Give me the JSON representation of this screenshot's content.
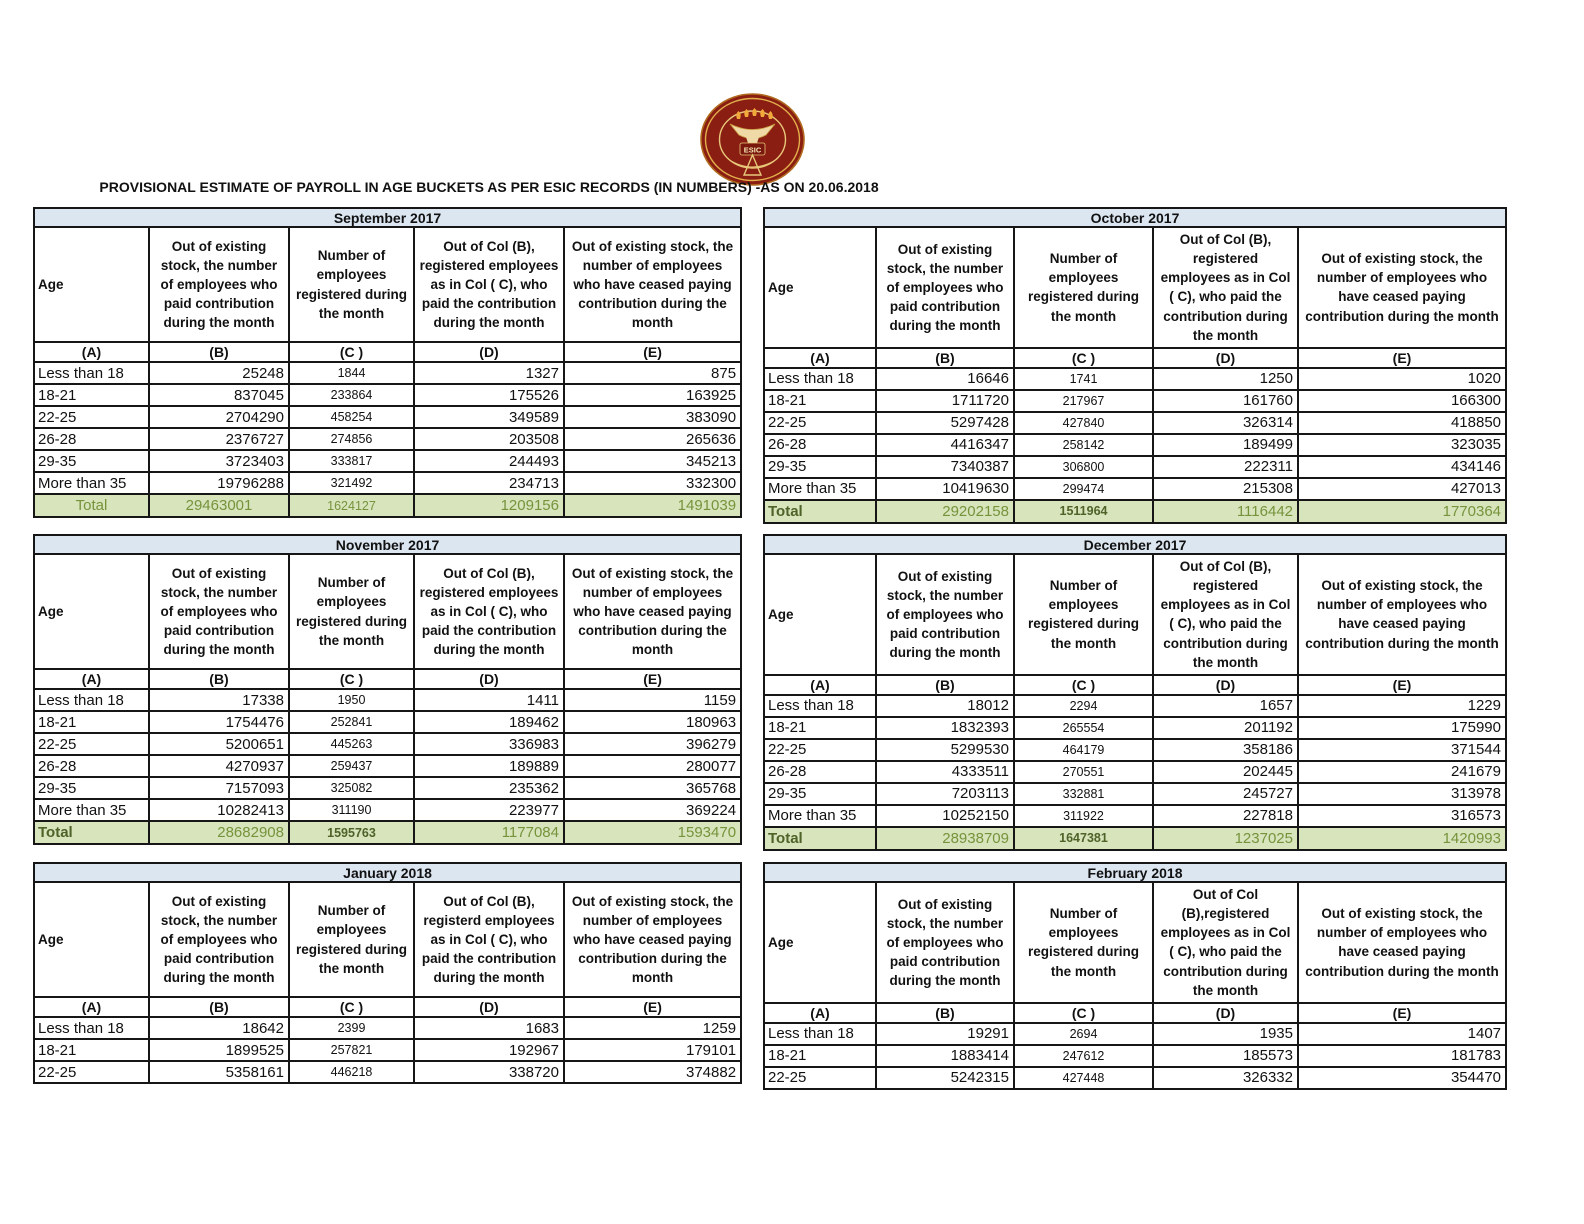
{
  "page": {
    "title": "PROVISIONAL ESTIMATE OF PAYROLL IN AGE BUCKETS AS PER ESIC RECORDS (IN NUMBERS) -AS ON 20.06.2018"
  },
  "logo": {
    "label": "ESIC"
  },
  "colors": {
    "month_header_fill": "#DCE6F1",
    "total_row_fill": "#D7E4BC",
    "total_text": "#76933C",
    "total_text_bold": "#4F6228",
    "grid_line": "#161616",
    "logo_maroon": "#8A1E12",
    "logo_gold": "#E3B04B"
  },
  "tables": [
    {
      "month": "September 2017",
      "columns": [
        "Age",
        "Out of existing stock, the number of employees who paid contribution during the month",
        "Number of employees registered during the month",
        "Out of Col (B), registered employees as in Col ( C), who paid the contribution during the month",
        "Out of existing stock, the number of employees who have ceased paying contribution during the month"
      ],
      "letters": [
        "(A)",
        "(B)",
        "(C )",
        "(D)",
        "(E)"
      ],
      "rows": [
        [
          "Less than 18",
          "25248",
          "1844",
          "1327",
          "875"
        ],
        [
          "18-21",
          "837045",
          "233864",
          "175526",
          "163925"
        ],
        [
          "22-25",
          "2704290",
          "458254",
          "349589",
          "383090"
        ],
        [
          "26-28",
          "2376727",
          "274856",
          "203508",
          "265636"
        ],
        [
          "29-35",
          "3723403",
          "333817",
          "244493",
          "345213"
        ],
        [
          "More than 35",
          "19796288",
          "321492",
          "234713",
          "332300"
        ]
      ],
      "total": [
        "Total",
        "29463001",
        "1624127",
        "1209156",
        "1491039"
      ]
    },
    {
      "month": "October 2017",
      "columns": [
        "Age",
        "Out of existing stock, the number of employees who paid contribution during the month",
        "Number of employees registered during the month",
        "Out of Col (B), registered employees as in Col ( C), who paid the contribution during the month",
        "Out of existing stock, the number of employees who have ceased paying contribution during the month"
      ],
      "letters": [
        "(A)",
        "(B)",
        "(C )",
        "(D)",
        "(E)"
      ],
      "rows": [
        [
          "Less than 18",
          "16646",
          "1741",
          "1250",
          "1020"
        ],
        [
          "18-21",
          "1711720",
          "217967",
          "161760",
          "166300"
        ],
        [
          "22-25",
          "5297428",
          "427840",
          "326314",
          "418850"
        ],
        [
          "26-28",
          "4416347",
          "258142",
          "189499",
          "323035"
        ],
        [
          "29-35",
          "7340387",
          "306800",
          "222311",
          "434146"
        ],
        [
          "More than 35",
          "10419630",
          "299474",
          "215308",
          "427013"
        ]
      ],
      "total": [
        "Total",
        "29202158",
        "1511964",
        "1116442",
        "1770364"
      ]
    },
    {
      "month": "November 2017",
      "columns": [
        "Age",
        "Out of existing stock, the number of employees who paid contribution during the month",
        "Number of employees registered during the month",
        "Out of Col (B), registered employees as in Col ( C), who paid the contribution during the month",
        "Out of existing stock, the number of employees who have ceased paying contribution during the month"
      ],
      "letters": [
        "(A)",
        "(B)",
        "(C )",
        "(D)",
        "(E)"
      ],
      "rows": [
        [
          "Less than 18",
          "17338",
          "1950",
          "1411",
          "1159"
        ],
        [
          "18-21",
          "1754476",
          "252841",
          "189462",
          "180963"
        ],
        [
          "22-25",
          "5200651",
          "445263",
          "336983",
          "396279"
        ],
        [
          "26-28",
          "4270937",
          "259437",
          "189889",
          "280077"
        ],
        [
          "29-35",
          "7157093",
          "325082",
          "235362",
          "365768"
        ],
        [
          "More than 35",
          "10282413",
          "311190",
          "223977",
          "369224"
        ]
      ],
      "total": [
        "Total",
        "28682908",
        "1595763",
        "1177084",
        "1593470"
      ]
    },
    {
      "month": "December 2017",
      "columns": [
        "Age",
        "Out of existing stock, the number of employees who paid contribution during the month",
        "Number of employees registered during the month",
        "Out of Col (B), registered employees as in Col ( C), who paid the contribution during the month",
        "Out of existing stock, the number of employees who have ceased paying contribution during the month"
      ],
      "letters": [
        "(A)",
        "(B)",
        "(C )",
        "(D)",
        "(E)"
      ],
      "rows": [
        [
          "Less than 18",
          "18012",
          "2294",
          "1657",
          "1229"
        ],
        [
          "18-21",
          "1832393",
          "265554",
          "201192",
          "175990"
        ],
        [
          "22-25",
          "5299530",
          "464179",
          "358186",
          "371544"
        ],
        [
          "26-28",
          "4333511",
          "270551",
          "202445",
          "241679"
        ],
        [
          "29-35",
          "7203113",
          "332881",
          "245727",
          "313978"
        ],
        [
          "More than 35",
          "10252150",
          "311922",
          "227818",
          "316573"
        ]
      ],
      "total": [
        "Total",
        "28938709",
        "1647381",
        "1237025",
        "1420993"
      ]
    },
    {
      "month": "January 2018",
      "columns": [
        "Age",
        "Out of existing stock, the number of employees who paid contribution during the month",
        "Number of employees registered during the month",
        "Out of Col (B), registerd employees as in Col ( C), who paid the contribution during the month",
        "Out of existing stock, the number of employees who have ceased paying contribution during the month"
      ],
      "letters": [
        "(A)",
        "(B)",
        "(C )",
        "(D)",
        "(E)"
      ],
      "rows": [
        [
          "Less than 18",
          "18642",
          "2399",
          "1683",
          "1259"
        ],
        [
          "18-21",
          "1899525",
          "257821",
          "192967",
          "179101"
        ],
        [
          "22-25",
          "5358161",
          "446218",
          "338720",
          "374882"
        ]
      ],
      "total": null
    },
    {
      "month": "February 2018",
      "columns": [
        "Age",
        "Out of existing stock, the number of employees who paid contribution during the month",
        "Number of employees registered during the month",
        "Out of Col (B),registered employees as in Col ( C), who paid the contribution during the month",
        "Out of existing stock, the number of employees who have ceased paying contribution during the month"
      ],
      "letters": [
        "(A)",
        "(B)",
        "(C )",
        "(D)",
        "(E)"
      ],
      "rows": [
        [
          "Less than 18",
          "19291",
          "2694",
          "1935",
          "1407"
        ],
        [
          "18-21",
          "1883414",
          "247612",
          "185573",
          "181783"
        ],
        [
          "22-25",
          "5242315",
          "427448",
          "326332",
          "354470"
        ]
      ],
      "total": null
    }
  ]
}
